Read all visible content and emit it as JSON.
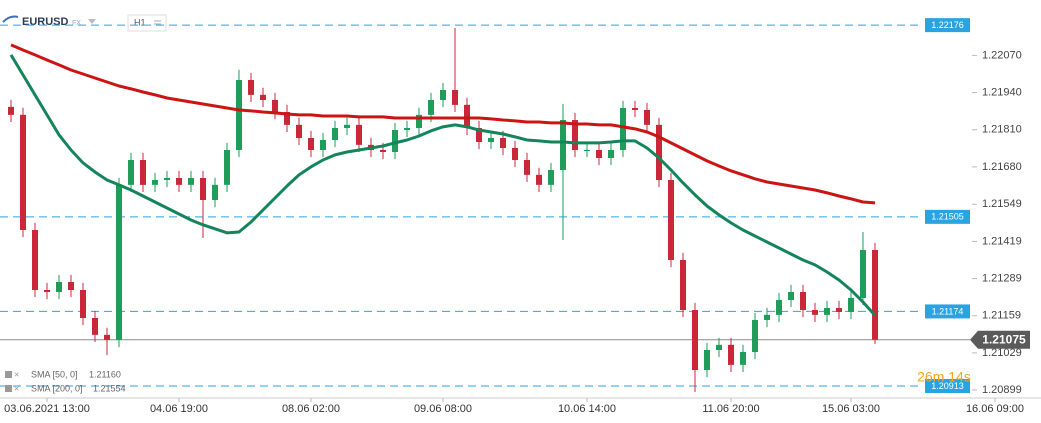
{
  "header": {
    "symbol": "EURUSD",
    "market": "FX",
    "interval": "H1"
  },
  "chart_data": {
    "type": "candlestick",
    "x": [
      null,
      null,
      null,
      "03.06.2021 13:00",
      null,
      null,
      null,
      null,
      null,
      null,
      null,
      null,
      null,
      null,
      "04.06 19:00",
      null,
      null,
      null,
      null,
      null,
      null,
      null,
      null,
      null,
      null,
      "08.06 02:00",
      null,
      null,
      null,
      null,
      null,
      null,
      null,
      null,
      null,
      null,
      "09.06 08:00",
      null,
      null,
      null,
      null,
      null,
      null,
      null,
      null,
      null,
      null,
      null,
      "10.06 14:00",
      null,
      null,
      null,
      null,
      null,
      null,
      null,
      null,
      null,
      null,
      null,
      "11.06 20:00",
      null,
      null,
      null,
      null,
      null,
      null,
      null,
      null,
      null,
      "15.06 03:00",
      null,
      null,
      null,
      null,
      null,
      null,
      null,
      null,
      null,
      null,
      null,
      "16.06 09:00"
    ],
    "open": [
      1.2189,
      1.21862,
      1.21459,
      1.21249,
      1.21242,
      1.21277,
      1.21249,
      1.21151,
      1.21092,
      1.21074,
      1.21617,
      1.21704,
      1.21617,
      1.21634,
      1.21641,
      1.21617,
      1.21641,
      1.21564,
      1.21617,
      1.21739,
      1.21984,
      1.21932,
      1.21914,
      1.21872,
      1.21827,
      1.21781,
      1.21739,
      1.21774,
      1.21816,
      1.21827,
      1.21757,
      1.21739,
      1.21732,
      1.21809,
      1.21816,
      1.21862,
      1.21914,
      1.21949,
      1.21897,
      1.21816,
      1.21767,
      1.21781,
      1.21746,
      1.21704,
      1.21652,
      1.21617,
      1.21669,
      1.21844,
      1.21739,
      1.21739,
      1.21711,
      1.21739,
      1.21886,
      1.21879,
      1.21827,
      1.21634,
      1.21354,
      1.21179,
      1.20969,
      1.21039,
      1.21057,
      1.20987,
      1.21032,
      1.21144,
      1.21162,
      1.21214,
      1.21242,
      1.21179,
      1.21162,
      1.21186,
      1.21172,
      1.21221,
      1.21389,
      null,
      null,
      null,
      null,
      null,
      null,
      null,
      null,
      null,
      null
    ],
    "high": [
      1.21915,
      1.21887,
      1.21484,
      1.21274,
      1.21302,
      1.21302,
      1.21274,
      1.21176,
      1.21117,
      1.21642,
      1.21729,
      1.21729,
      1.21659,
      1.21666,
      1.21666,
      1.21666,
      1.21666,
      1.21642,
      1.21764,
      1.2202,
      1.22009,
      1.21957,
      1.21939,
      1.21897,
      1.21852,
      1.21806,
      1.21799,
      1.21841,
      1.21852,
      1.21852,
      1.21782,
      1.21764,
      1.21834,
      1.21841,
      1.21887,
      1.21939,
      1.21974,
      1.22166,
      1.21922,
      1.21841,
      1.21806,
      1.21806,
      1.21771,
      1.21729,
      1.21677,
      1.21694,
      1.219,
      1.21869,
      1.21764,
      1.21764,
      1.21764,
      1.21911,
      1.21911,
      1.21904,
      1.21852,
      1.21659,
      1.21379,
      1.21204,
      1.21064,
      1.21082,
      1.21082,
      1.21057,
      1.21169,
      1.21187,
      1.21239,
      1.21267,
      1.21267,
      1.21204,
      1.21211,
      1.21211,
      1.21246,
      1.21452,
      1.21414,
      null,
      null,
      null,
      null,
      null,
      null,
      null,
      null,
      null,
      null
    ],
    "low": [
      1.21837,
      1.21434,
      1.21224,
      1.21217,
      1.21217,
      1.21224,
      1.21126,
      1.21067,
      1.21021,
      1.21049,
      1.21592,
      1.21592,
      1.21592,
      1.21609,
      1.21592,
      1.21592,
      1.21431,
      1.21539,
      1.21592,
      1.21714,
      1.21907,
      1.21889,
      1.21847,
      1.21802,
      1.21756,
      1.21714,
      1.21714,
      1.21749,
      1.21791,
      1.21732,
      1.21714,
      1.21707,
      1.21707,
      1.21784,
      1.21791,
      1.21837,
      1.21889,
      1.21872,
      1.21791,
      1.21742,
      1.21742,
      1.21721,
      1.21679,
      1.21627,
      1.21592,
      1.21592,
      1.21424,
      1.21714,
      1.21714,
      1.21686,
      1.21686,
      1.21714,
      1.21854,
      1.21802,
      1.21609,
      1.21329,
      1.21154,
      1.20892,
      1.20944,
      1.21014,
      1.20962,
      1.20962,
      1.21007,
      1.21119,
      1.21137,
      1.21189,
      1.21154,
      1.21137,
      1.21137,
      1.21147,
      1.21147,
      1.21196,
      1.2106,
      null,
      null,
      null,
      null,
      null,
      null,
      null,
      null,
      null,
      null
    ],
    "close": [
      1.21862,
      1.21459,
      1.21249,
      1.21242,
      1.21277,
      1.21249,
      1.21151,
      1.21092,
      1.21074,
      1.21617,
      1.21704,
      1.21617,
      1.21634,
      1.21641,
      1.21617,
      1.21641,
      1.21564,
      1.21617,
      1.21739,
      1.21984,
      1.21932,
      1.21914,
      1.21872,
      1.21827,
      1.21781,
      1.21739,
      1.21774,
      1.21816,
      1.21827,
      1.21757,
      1.21739,
      1.21732,
      1.21809,
      1.21816,
      1.21862,
      1.21914,
      1.21949,
      1.21897,
      1.21816,
      1.21767,
      1.21781,
      1.21746,
      1.21704,
      1.21652,
      1.21617,
      1.21669,
      1.21844,
      1.21739,
      1.21739,
      1.21711,
      1.21739,
      1.21886,
      1.21879,
      1.21827,
      1.21634,
      1.21354,
      1.21179,
      1.20969,
      1.21039,
      1.21057,
      1.20987,
      1.21032,
      1.21144,
      1.21162,
      1.21214,
      1.21242,
      1.21179,
      1.21162,
      1.21186,
      1.21172,
      1.21221,
      1.21389,
      1.21075,
      null,
      null,
      null,
      null,
      null,
      null,
      null,
      null,
      null,
      null
    ],
    "up_color": "#1e9e5a",
    "down_color": "#c8283a",
    "indicators": [
      {
        "name": "SMA [50, 0]",
        "color": "#14855a",
        "value_label": "1.21160",
        "values": [
          1.22072,
          1.22002,
          1.21932,
          1.21862,
          1.21792,
          1.21739,
          1.21694,
          1.21662,
          1.21634,
          1.21617,
          1.21599,
          1.21578,
          1.21557,
          1.21536,
          1.21515,
          1.21494,
          1.21477,
          1.21463,
          1.21449,
          1.21452,
          1.21487,
          1.21529,
          1.21571,
          1.21613,
          1.21652,
          1.2168,
          1.21704,
          1.21722,
          1.21732,
          1.21739,
          1.21746,
          1.21753,
          1.21764,
          1.21774,
          1.21788,
          1.21806,
          1.2182,
          1.21827,
          1.2182,
          1.21809,
          1.21802,
          1.21795,
          1.21785,
          1.21774,
          1.21771,
          1.21767,
          1.21767,
          1.21764,
          1.21764,
          1.21764,
          1.21767,
          1.21771,
          1.21771,
          1.21746,
          1.21711,
          1.21669,
          1.21624,
          1.21582,
          1.21543,
          1.21512,
          1.21484,
          1.21459,
          1.21438,
          1.21417,
          1.21396,
          1.21375,
          1.21354,
          1.21337,
          1.21312,
          1.21284,
          1.21249,
          1.21207,
          1.2116,
          null,
          null,
          null,
          null,
          null,
          null,
          null,
          null,
          null,
          null
        ]
      },
      {
        "name": "SMA [200, 0]",
        "color": "#cc1414",
        "value_label": "1.21554",
        "values": [
          1.22107,
          1.22089,
          1.22072,
          1.22054,
          1.22037,
          1.22019,
          1.22005,
          1.21991,
          1.21977,
          1.21963,
          1.21953,
          1.21942,
          1.21932,
          1.21921,
          1.21914,
          1.21907,
          1.219,
          1.21893,
          1.21886,
          1.21879,
          1.21876,
          1.21872,
          1.21869,
          1.21865,
          1.21862,
          1.21862,
          1.21858,
          1.21858,
          1.21858,
          1.21855,
          1.21855,
          1.21855,
          1.21851,
          1.21851,
          1.21851,
          1.21851,
          1.21851,
          1.21851,
          1.21851,
          1.21851,
          1.21848,
          1.21844,
          1.21841,
          1.21837,
          1.21837,
          1.21834,
          1.21834,
          1.2183,
          1.2183,
          1.21827,
          1.21827,
          1.2182,
          1.21813,
          1.21802,
          1.21785,
          1.21764,
          1.21743,
          1.21722,
          1.21701,
          1.21683,
          1.21666,
          1.21652,
          1.21638,
          1.21627,
          1.2162,
          1.21613,
          1.21606,
          1.21599,
          1.21589,
          1.21578,
          1.21568,
          1.21557,
          1.21554,
          null,
          null,
          null,
          null,
          null,
          null,
          null,
          null,
          null,
          null
        ]
      }
    ],
    "ylim": [
      1.20871,
      1.22264
    ],
    "yticks": [
      {
        "value": 1.2207,
        "label": "1.22070"
      },
      {
        "value": 1.2194,
        "label": "1.21940"
      },
      {
        "value": 1.2181,
        "label": "1.21810"
      },
      {
        "value": 1.2168,
        "label": "1.21680"
      },
      1.21549,
      1.21419,
      1.21289,
      1.21159,
      1.21029,
      1.20899
    ],
    "levels": [
      1.22176,
      1.21505,
      1.21174,
      1.20913
    ],
    "level_color": "#2aa3e3",
    "last_price": 1.21075,
    "countdown": "26m 14s"
  }
}
